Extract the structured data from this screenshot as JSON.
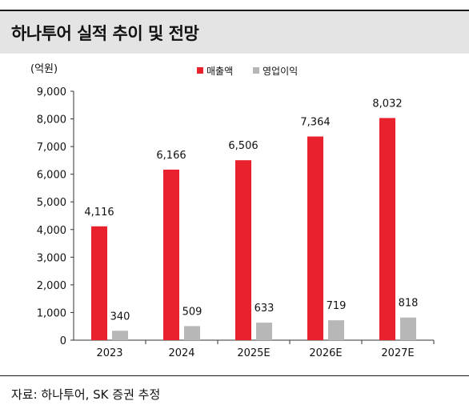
{
  "title": "하나투어 실적 추이 및 전망",
  "source": "자료: 하나투어, SK 증권 추정",
  "colors": {
    "revenue": "#e8212c",
    "operating_profit": "#b7b7b7"
  },
  "chart_data": {
    "type": "bar",
    "unit_label": "(억원)",
    "categories": [
      "2023",
      "2024",
      "2025E",
      "2026E",
      "2027E"
    ],
    "series": [
      {
        "name": "매출액",
        "values": [
          4116,
          6166,
          6506,
          7364,
          8032
        ]
      },
      {
        "name": "영업이익",
        "values": [
          340,
          509,
          633,
          719,
          818
        ]
      }
    ],
    "value_labels": [
      [
        "4,116",
        "6,166",
        "6,506",
        "7,364",
        "8,032"
      ],
      [
        "340",
        "509",
        "633",
        "719",
        "818"
      ]
    ],
    "ylim": [
      0,
      9000
    ],
    "yticks": [
      0,
      1000,
      2000,
      3000,
      4000,
      5000,
      6000,
      7000,
      8000,
      9000
    ],
    "ytick_labels": [
      "0",
      "1,000",
      "2,000",
      "3,000",
      "4,000",
      "5,000",
      "6,000",
      "7,000",
      "8,000",
      "9,000"
    ],
    "legend_position": "top-center",
    "grid": false
  }
}
